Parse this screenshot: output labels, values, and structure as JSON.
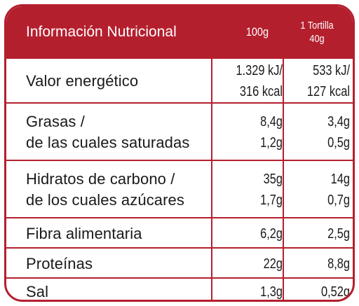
{
  "header": {
    "title": "Información Nutricional",
    "col_100g": "100g",
    "col_unit_line1": "1 Tortilla",
    "col_unit_line2": "40g"
  },
  "rows": [
    {
      "label": [
        "Valor energético"
      ],
      "per100g": [
        "1.329 kJ/",
        "316 kcal"
      ],
      "perUnit": [
        "533 kJ/",
        "127 kcal"
      ]
    },
    {
      "label": [
        "Grasas /",
        "de las cuales saturadas"
      ],
      "per100g": [
        "8,4g",
        "1,2g"
      ],
      "perUnit": [
        "3,4g",
        "0,5g"
      ]
    },
    {
      "label": [
        "Hidratos de carbono /",
        "de los cuales azúcares"
      ],
      "per100g": [
        "35g",
        "1,7g"
      ],
      "perUnit": [
        "14g",
        "0,7g"
      ]
    },
    {
      "label": [
        "Fibra alimentaria"
      ],
      "per100g": [
        "6,2g"
      ],
      "perUnit": [
        "2,5g"
      ]
    },
    {
      "label": [
        "Proteínas"
      ],
      "per100g": [
        "22g"
      ],
      "perUnit": [
        "8,8g"
      ]
    },
    {
      "label": [
        "Sal"
      ],
      "per100g": [
        "1,3g"
      ],
      "perUnit": [
        "0,52g"
      ]
    }
  ],
  "colors": {
    "accent": "#b41f2e"
  }
}
